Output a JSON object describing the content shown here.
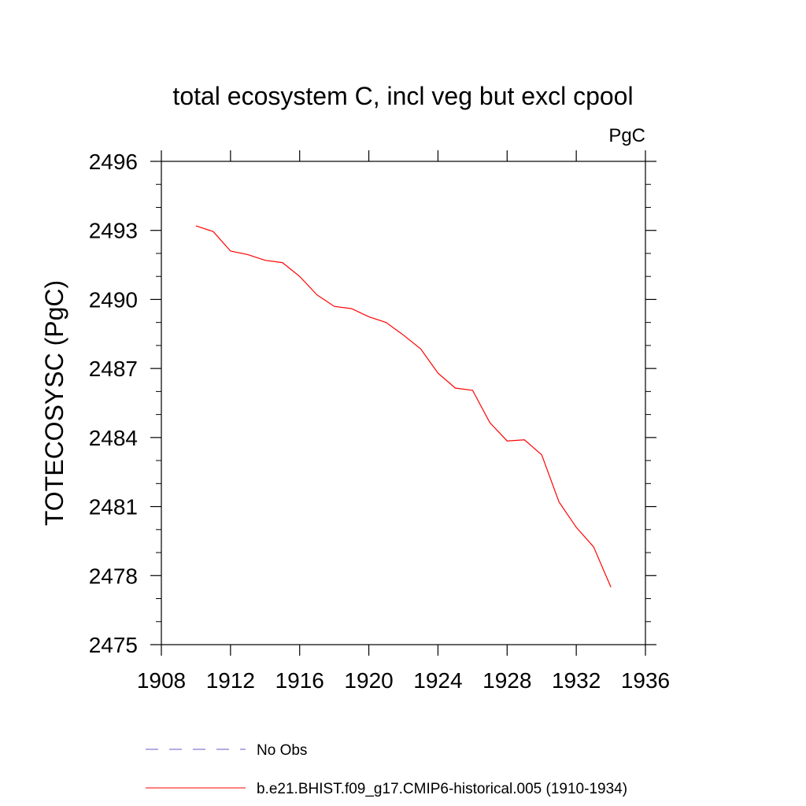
{
  "chart_data": {
    "type": "line",
    "title": "total ecosystem C, incl veg but excl cpool",
    "units_label": "PgC",
    "ylabel": "TOTECOSYSC  (PgC)",
    "xlabel": "",
    "xlim": [
      1908,
      1936
    ],
    "ylim": [
      2475,
      2496
    ],
    "x_ticks": [
      1908,
      1912,
      1916,
      1920,
      1924,
      1928,
      1932,
      1936
    ],
    "y_ticks": [
      2475,
      2478,
      2481,
      2484,
      2487,
      2490,
      2493,
      2496
    ],
    "x_tick_labels": [
      "1908",
      "1912",
      "1916",
      "1920",
      "1924",
      "1928",
      "1932",
      "1936"
    ],
    "y_tick_labels": [
      "2475",
      "2478",
      "2481",
      "2484",
      "2487",
      "2490",
      "2493",
      "2496"
    ],
    "grid": false,
    "legend_position": "bottom",
    "series": [
      {
        "name": "b.e21.BHIST.f09_g17.CMIP6-historical.005 (1910-1934)",
        "color": "#ff0000",
        "dash": "solid",
        "x": [
          1910,
          1911,
          1912,
          1913,
          1914,
          1915,
          1916,
          1917,
          1918,
          1919,
          1920,
          1921,
          1922,
          1923,
          1924,
          1925,
          1926,
          1927,
          1928,
          1929,
          1930,
          1931,
          1932,
          1933,
          1934
        ],
        "y": [
          2493.2,
          2492.95,
          2492.1,
          2491.95,
          2491.7,
          2491.6,
          2491.0,
          2490.2,
          2489.7,
          2489.6,
          2489.25,
          2489.0,
          2488.45,
          2487.85,
          2486.8,
          2486.15,
          2486.05,
          2484.65,
          2483.85,
          2483.9,
          2483.25,
          2481.2,
          2480.1,
          2479.25,
          2477.5
        ]
      }
    ],
    "legend": [
      {
        "label": "No Obs",
        "color": "#6a5acd",
        "dash": "dashed"
      },
      {
        "label": "b.e21.BHIST.f09_g17.CMIP6-historical.005 (1910-1934)",
        "color": "#ff0000",
        "dash": "solid"
      }
    ]
  }
}
